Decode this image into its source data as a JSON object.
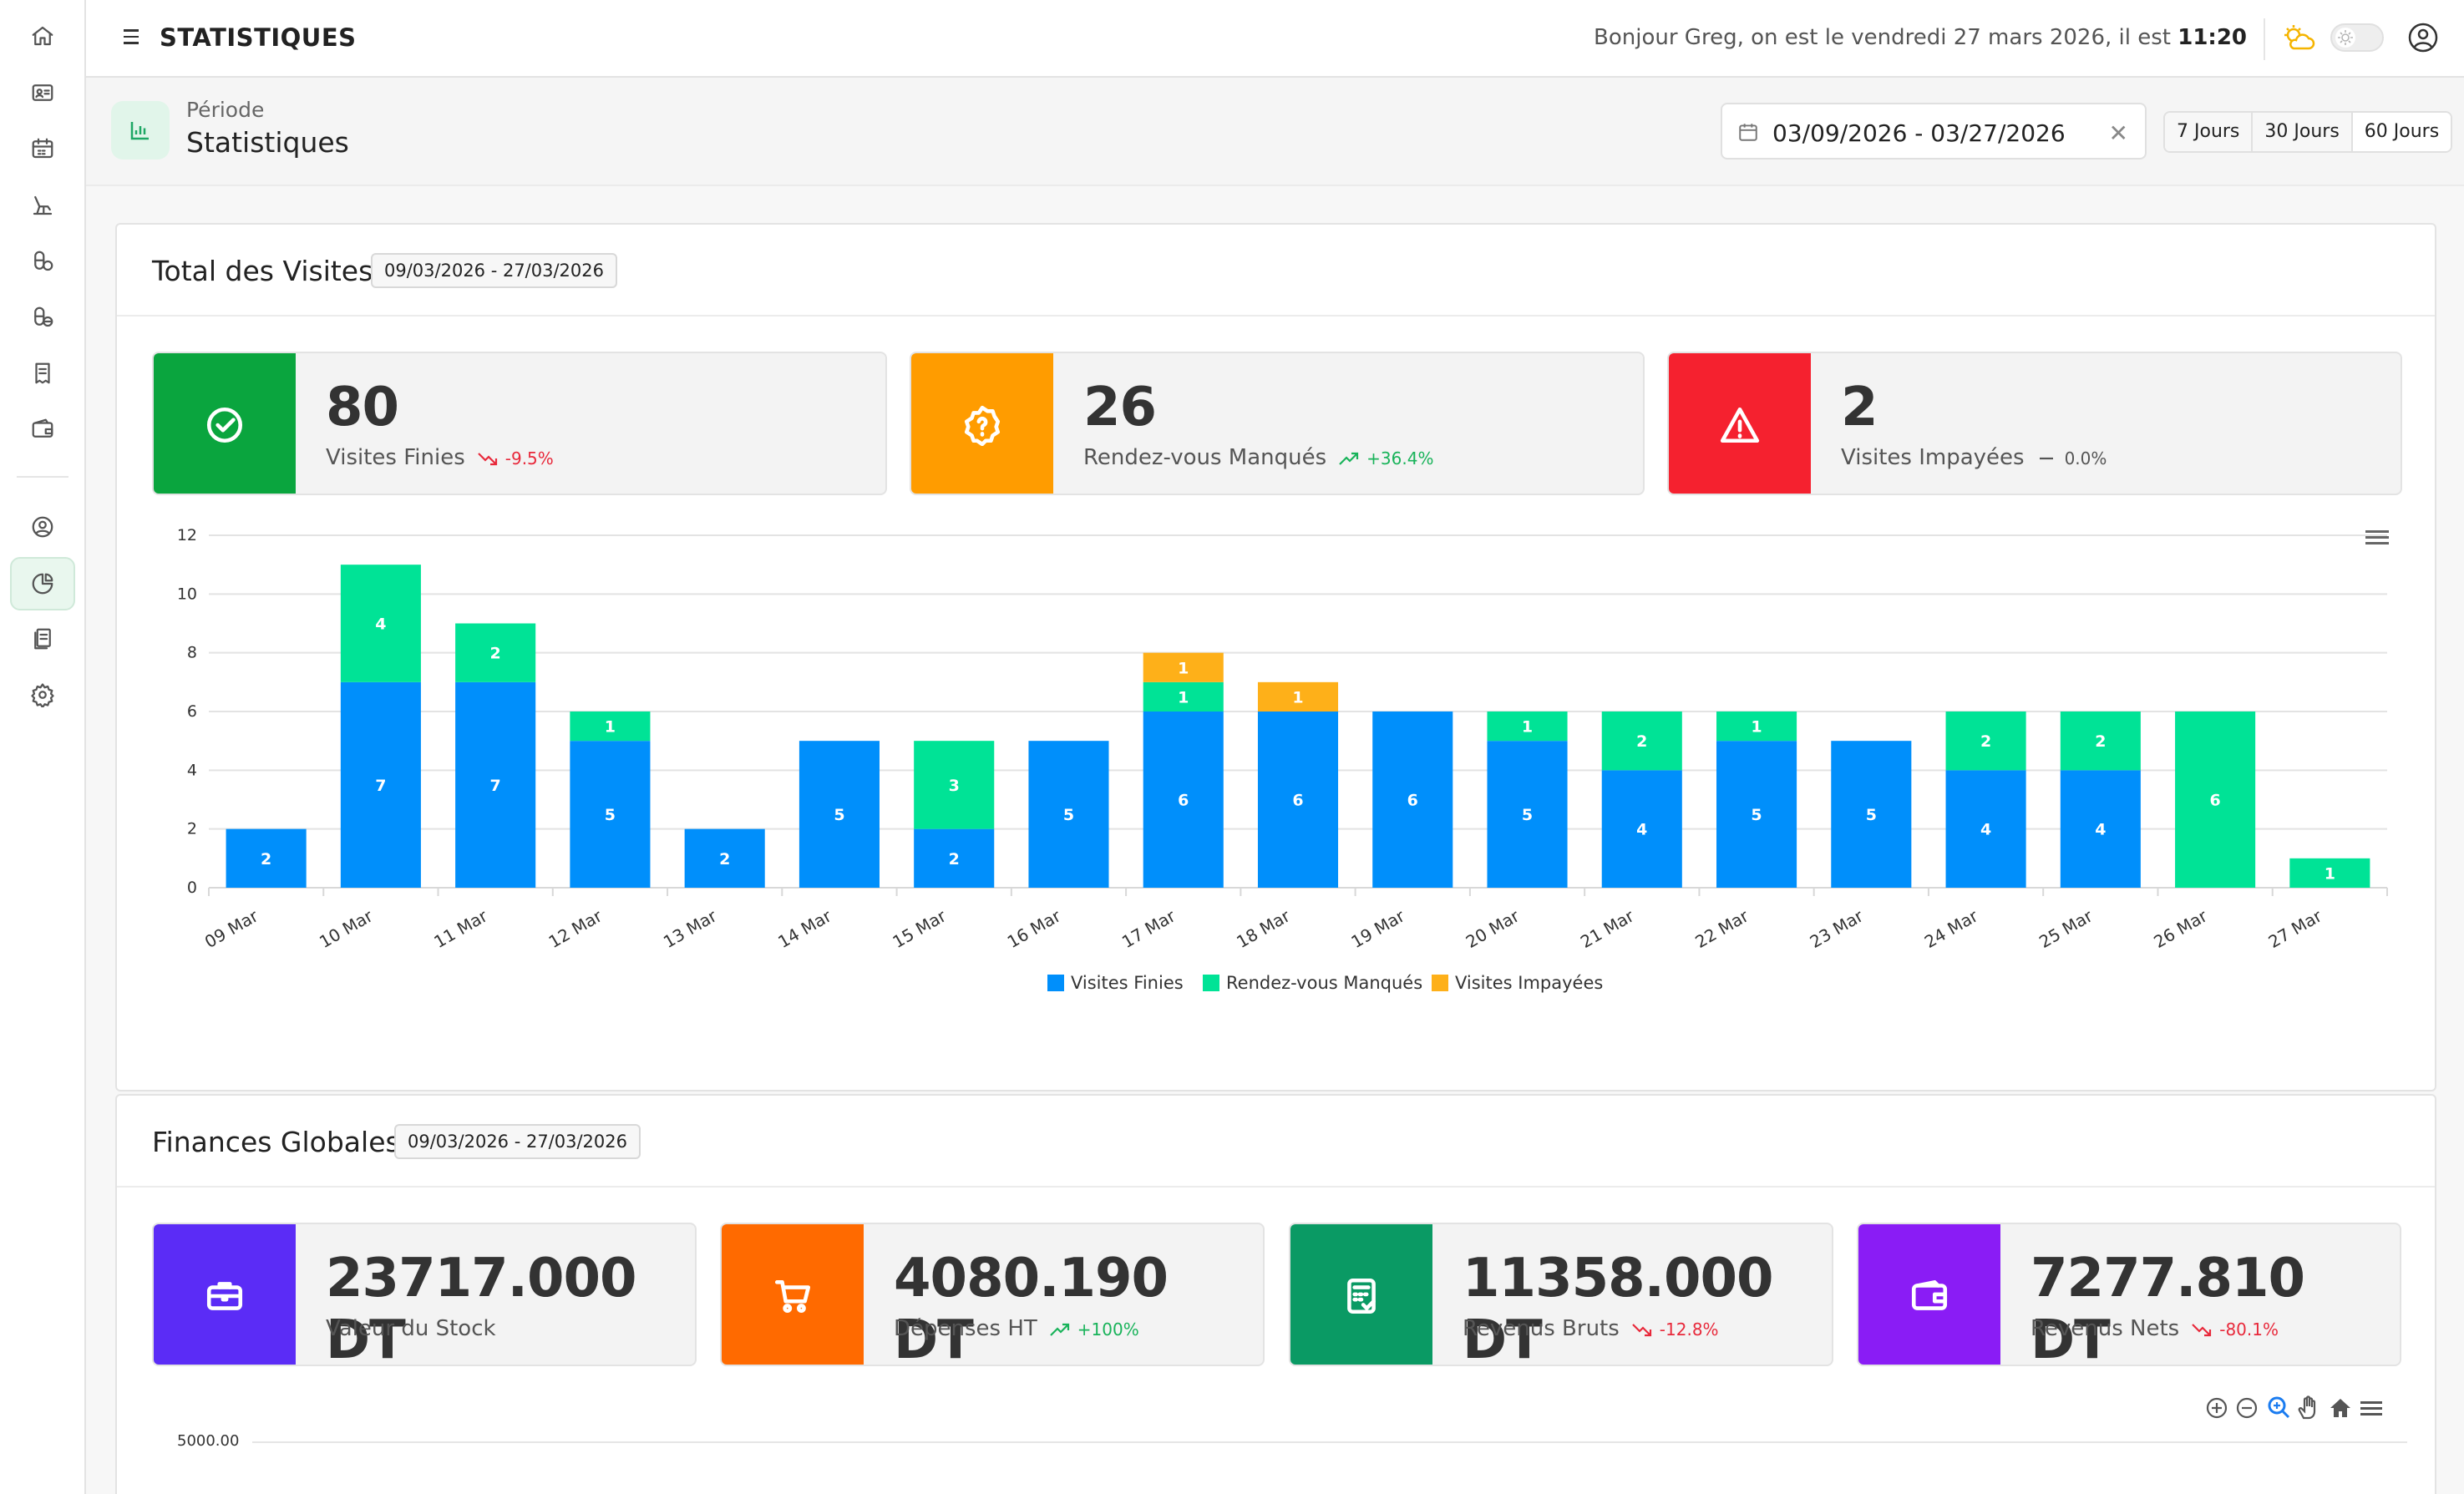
{
  "header": {
    "title": "STATISTIQUES",
    "greeting_prefix": "Bonjour Greg, on est le vendredi 27 mars 2026, il est ",
    "time": "11:20"
  },
  "subheader": {
    "crumb": "Période",
    "title": "Statistiques",
    "date_range": "03/09/2026 - 03/27/2026",
    "clear": "✕",
    "periods": [
      "7 Jours",
      "30 Jours",
      "60 Jours"
    ]
  },
  "visits": {
    "title": "Total des Visites",
    "range": "09/03/2026 - 27/03/2026",
    "stats": [
      {
        "value": "80",
        "label": "Visites Finies",
        "trend": "-9.5%",
        "dir": "down",
        "color": "#0aa53e"
      },
      {
        "value": "26",
        "label": "Rendez-vous Manqués",
        "trend": "+36.4%",
        "dir": "up",
        "color": "#ff9c00"
      },
      {
        "value": "2",
        "label": "Visites Impayées",
        "trend": "0.0%",
        "dir": "flat",
        "color": "#f5212f"
      }
    ]
  },
  "finances": {
    "title": "Finances Globales",
    "range": "09/03/2026 - 27/03/2026",
    "stats": [
      {
        "value": "23717.000 DT",
        "label": "Valeur du Stock",
        "trend": "",
        "dir": "",
        "color": "#5b2cf6"
      },
      {
        "value": "4080.190 DT",
        "label": "Dépenses HT",
        "trend": "+100%",
        "dir": "up",
        "color": "#ff6a00"
      },
      {
        "value": "11358.000 DT",
        "label": "Revenus Bruts",
        "trend": "-12.8%",
        "dir": "down",
        "color": "#0a9a64"
      },
      {
        "value": "7277.810 DT",
        "label": "Revenus Nets",
        "trend": "-80.1%",
        "dir": "down",
        "color": "#8a1cf5"
      }
    ],
    "axis_first_tick": "5000.00"
  },
  "chart_data": [
    {
      "type": "bar",
      "stacked": true,
      "title": "Total des Visites",
      "categories": [
        "09 Mar",
        "10 Mar",
        "11 Mar",
        "12 Mar",
        "13 Mar",
        "14 Mar",
        "15 Mar",
        "16 Mar",
        "17 Mar",
        "18 Mar",
        "19 Mar",
        "20 Mar",
        "21 Mar",
        "22 Mar",
        "23 Mar",
        "24 Mar",
        "25 Mar",
        "26 Mar",
        "27 Mar"
      ],
      "series": [
        {
          "name": "Visites Finies",
          "color": "#008ffb",
          "values": [
            2,
            7,
            7,
            5,
            2,
            5,
            2,
            5,
            6,
            6,
            6,
            5,
            4,
            5,
            5,
            4,
            4,
            0,
            0
          ]
        },
        {
          "name": "Rendez-vous Manqués",
          "color": "#00e396",
          "values": [
            0,
            4,
            2,
            1,
            0,
            0,
            3,
            0,
            1,
            0,
            0,
            1,
            2,
            1,
            0,
            2,
            2,
            6,
            1
          ]
        },
        {
          "name": "Visites Impayées",
          "color": "#feb019",
          "values": [
            0,
            0,
            0,
            0,
            0,
            0,
            0,
            0,
            1,
            1,
            0,
            0,
            0,
            0,
            0,
            0,
            0,
            0,
            0
          ]
        }
      ],
      "ylim": [
        0,
        12
      ],
      "yticks": [
        0,
        2,
        4,
        6,
        8,
        10,
        12
      ],
      "legend": "bottom"
    }
  ]
}
